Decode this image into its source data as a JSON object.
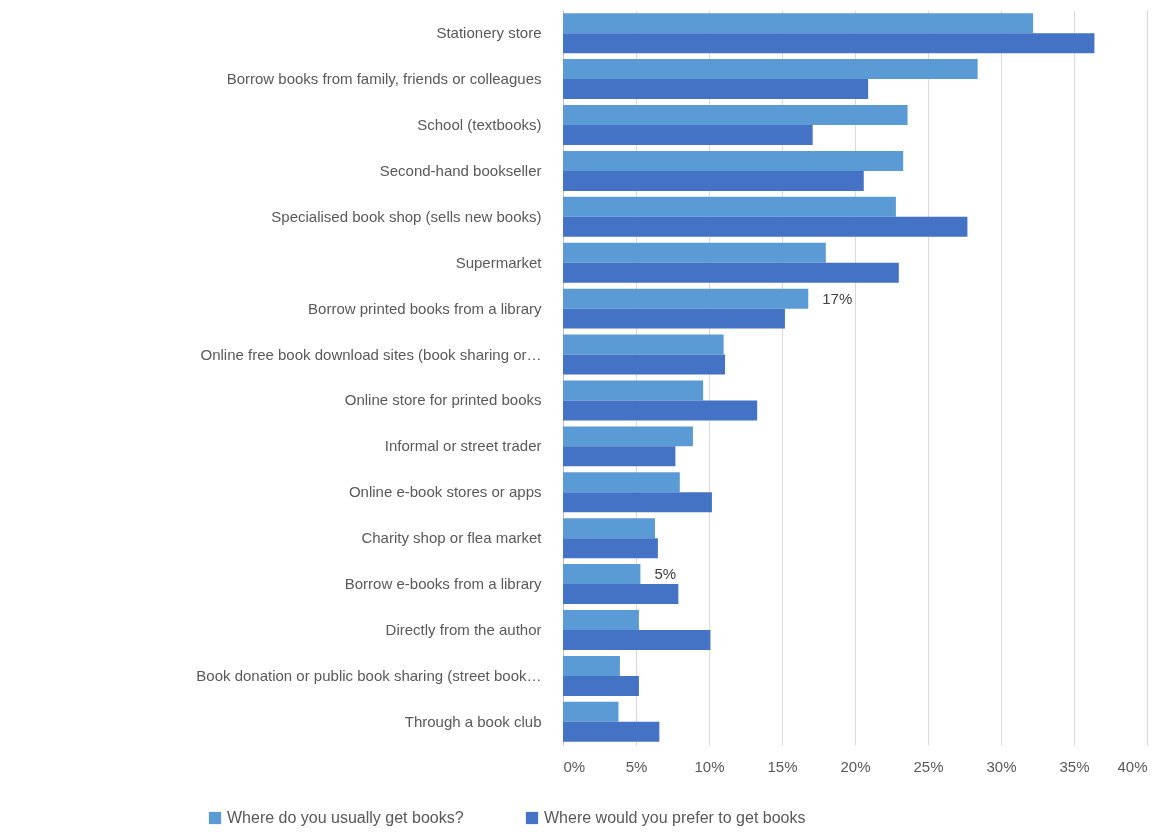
{
  "chart_data": {
    "type": "bar",
    "orientation": "horizontal",
    "categories": [
      "Stationery store",
      "Borrow books from family, friends or colleagues",
      "School (textbooks)",
      "Second-hand bookseller",
      "Specialised book shop (sells new books)",
      "Supermarket",
      "Borrow printed books from a library",
      "Online free book download sites (book sharing or…",
      "Online store for printed books",
      "Informal or street trader",
      "Online e-book stores or apps",
      "Charity shop or flea market",
      "Borrow e-books from a library",
      "Directly from the author",
      "Book donation or public book sharing (street book…",
      "Through a book club"
    ],
    "series": [
      {
        "name": "Where do you usually get books?",
        "color": "#5b9bd5",
        "values": [
          32.2,
          28.4,
          23.6,
          23.3,
          22.8,
          18.0,
          16.8,
          11.0,
          9.6,
          8.9,
          8.0,
          6.3,
          5.3,
          5.2,
          3.9,
          3.8
        ],
        "value_labels": [
          null,
          null,
          null,
          null,
          null,
          null,
          "17%",
          null,
          null,
          null,
          null,
          null,
          "5%",
          null,
          null,
          null
        ]
      },
      {
        "name": "Where would you prefer to get books",
        "color": "#4472c4",
        "values": [
          36.4,
          20.9,
          17.1,
          20.6,
          27.7,
          23.0,
          15.2,
          11.1,
          13.3,
          7.7,
          10.2,
          6.5,
          7.9,
          10.1,
          5.2,
          6.6
        ]
      }
    ],
    "xlim": [
      0,
      40
    ],
    "xticks": [
      {
        "value": 0,
        "label": "0%"
      },
      {
        "value": 5,
        "label": "5%"
      },
      {
        "value": 10,
        "label": "10%"
      },
      {
        "value": 15,
        "label": "15%"
      },
      {
        "value": 20,
        "label": "20%"
      },
      {
        "value": 25,
        "label": "25%"
      },
      {
        "value": 30,
        "label": "30%"
      },
      {
        "value": 35,
        "label": "35%"
      },
      {
        "value": 40,
        "label": "40%"
      }
    ],
    "grid": "x",
    "legend": "bottom"
  }
}
